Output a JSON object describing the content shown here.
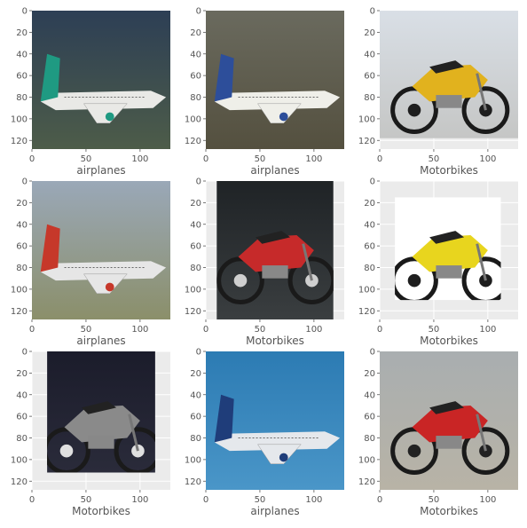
{
  "chart_data": {
    "type": "image_grid",
    "rows": 3,
    "cols": 3,
    "image_size": [
      128,
      128
    ],
    "xlim": [
      0,
      128
    ],
    "ylim": [
      128,
      0
    ],
    "x_ticks": [
      0,
      50,
      100
    ],
    "y_ticks": [
      0,
      20,
      40,
      60,
      80,
      100,
      120
    ],
    "grid": true,
    "panels": [
      {
        "label": "airplanes",
        "subject": "airplane",
        "colors": {
          "bg_top": "#2d3f55",
          "bg_bottom": "#4d5c49",
          "body": "#e9e9e6",
          "accent": "#1f9a82"
        },
        "content_extent": [
          0,
          128,
          0,
          128
        ]
      },
      {
        "label": "airplanes",
        "subject": "airplane",
        "colors": {
          "bg_top": "#6a6a5e",
          "bg_bottom": "#54503f",
          "body": "#efefe9",
          "accent": "#2d4e9a"
        },
        "content_extent": [
          0,
          128,
          0,
          128
        ]
      },
      {
        "label": "Motorbikes",
        "subject": "motorbike",
        "colors": {
          "bg_top": "#d9dfe6",
          "bg_bottom": "#c5c6c5",
          "body": "#e1b21e",
          "accent": "#1e1e1e"
        },
        "content_extent": [
          0,
          128,
          0,
          118
        ]
      },
      {
        "label": "airplanes",
        "subject": "airplane",
        "colors": {
          "bg_top": "#9aa8b8",
          "bg_bottom": "#8b8f6a",
          "body": "#e6e6e6",
          "accent": "#c6382a"
        },
        "content_extent": [
          0,
          128,
          0,
          128
        ]
      },
      {
        "label": "Motorbikes",
        "subject": "motorbike",
        "colors": {
          "bg_top": "#1f2326",
          "bg_bottom": "#3a3e40",
          "body": "#c62a2a",
          "accent": "#cfcfcf"
        },
        "content_extent": [
          10,
          118,
          0,
          128
        ]
      },
      {
        "label": "Motorbikes",
        "subject": "motorbike",
        "colors": {
          "bg_top": "#ffffff",
          "bg_bottom": "#ffffff",
          "body": "#e8d51e",
          "accent": "#1e1e1e"
        },
        "content_extent": [
          14,
          112,
          15,
          110
        ]
      },
      {
        "label": "Motorbikes",
        "subject": "motorbike",
        "colors": {
          "bg_top": "#1b1c2b",
          "bg_bottom": "#2a2b3a",
          "body": "#8a8a8a",
          "accent": "#e0e0e0"
        },
        "content_extent": [
          14,
          114,
          0,
          112
        ]
      },
      {
        "label": "airplanes",
        "subject": "airplane",
        "colors": {
          "bg_top": "#2c7bb3",
          "bg_bottom": "#4a96c8",
          "body": "#e5e8ec",
          "accent": "#1f3d7a"
        },
        "content_extent": [
          0,
          128,
          0,
          128
        ]
      },
      {
        "label": "Motorbikes",
        "subject": "motorbike",
        "colors": {
          "bg_top": "#a9aeb0",
          "bg_bottom": "#b8b3a6",
          "body": "#c92525",
          "accent": "#222222"
        },
        "content_extent": [
          0,
          128,
          0,
          128
        ]
      }
    ]
  },
  "colors": {
    "axes_bg": "#ebebeb",
    "grid": "#ffffff",
    "tick_text": "#555555",
    "tick_mark": "#555555"
  }
}
